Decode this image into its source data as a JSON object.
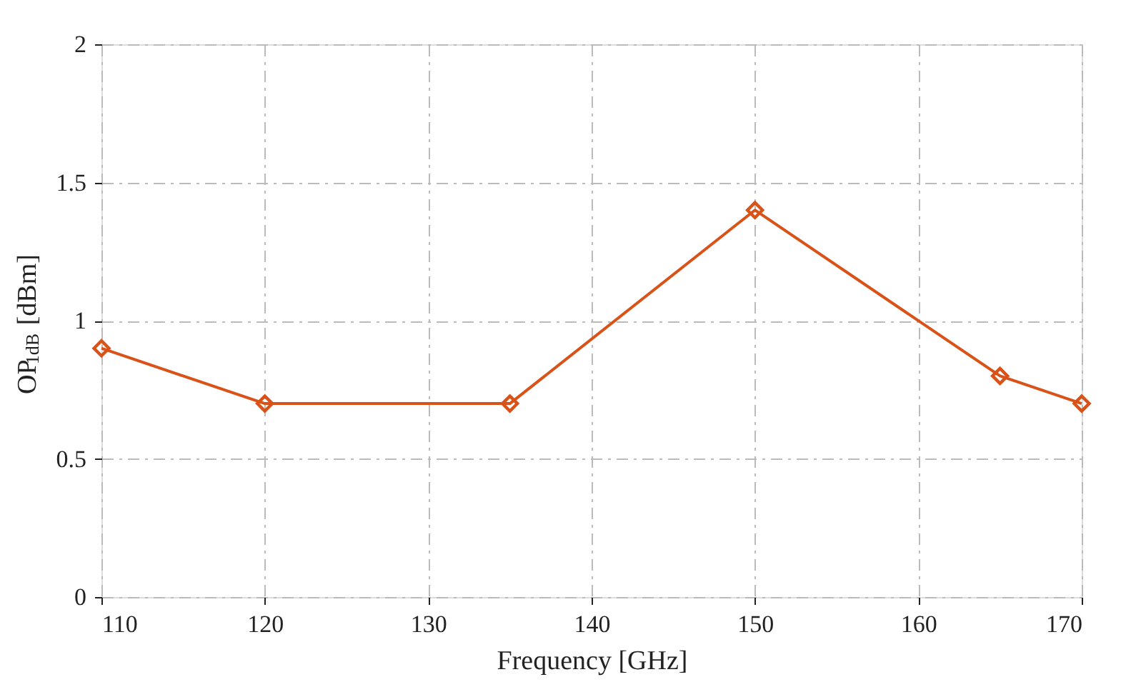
{
  "chart_data": {
    "type": "line",
    "xlabel": "Frequency [GHz]",
    "ylabel": "OP$_{1dB}$ [dBm]",
    "x": [
      110,
      120,
      135,
      150,
      165,
      170
    ],
    "series": [
      {
        "color": "#d95319",
        "values": [
          0.9,
          0.7,
          0.7,
          1.4,
          0.8,
          0.7
        ]
      }
    ],
    "xlim": [
      110,
      170
    ],
    "xticks": [
      110,
      120,
      130,
      140,
      150,
      160,
      170
    ],
    "ylim": [
      0,
      2
    ],
    "yticks": [
      0,
      0.5,
      1,
      1.5,
      2
    ],
    "grid": true,
    "marker": "diamond",
    "line_style": "solid"
  }
}
